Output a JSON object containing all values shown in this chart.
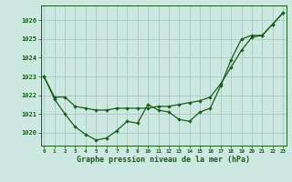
{
  "title": "Graphe pression niveau de la mer (hPa)",
  "bg_color": "#cce8e0",
  "grid_color": "#aacfc8",
  "line_color": "#1a5c1a",
  "x_ticks": [
    0,
    1,
    2,
    3,
    4,
    5,
    6,
    7,
    8,
    9,
    10,
    11,
    12,
    13,
    14,
    15,
    16,
    17,
    18,
    19,
    20,
    21,
    22,
    23
  ],
  "y_ticks": [
    1020,
    1021,
    1022,
    1023,
    1024,
    1025,
    1026
  ],
  "ylim": [
    1019.3,
    1026.8
  ],
  "xlim": [
    -0.3,
    23.3
  ],
  "series1_x": [
    0,
    1,
    2,
    3,
    4,
    5,
    6,
    7,
    8,
    9,
    10,
    11,
    12,
    13,
    14,
    15,
    16,
    17,
    18,
    19,
    20,
    21,
    22,
    23
  ],
  "series1_y": [
    1023.0,
    1021.8,
    1021.0,
    1020.3,
    1019.9,
    1019.6,
    1019.7,
    1020.1,
    1020.6,
    1020.5,
    1021.5,
    1021.2,
    1021.1,
    1020.7,
    1020.6,
    1021.1,
    1021.3,
    1022.5,
    1023.9,
    1025.0,
    1025.2,
    1025.2,
    1025.8,
    1026.4
  ],
  "series2_x": [
    0,
    1,
    2,
    3,
    4,
    5,
    6,
    7,
    8,
    9,
    10,
    11,
    12,
    13,
    14,
    15,
    16,
    17,
    18,
    19,
    20,
    21,
    22,
    23
  ],
  "series2_y": [
    1023.0,
    1021.9,
    1021.9,
    1021.4,
    1021.3,
    1021.2,
    1021.2,
    1021.3,
    1021.3,
    1021.3,
    1021.3,
    1021.4,
    1021.4,
    1021.5,
    1021.6,
    1021.7,
    1021.9,
    1022.6,
    1023.5,
    1024.4,
    1025.1,
    1025.2,
    1025.8,
    1026.4
  ]
}
